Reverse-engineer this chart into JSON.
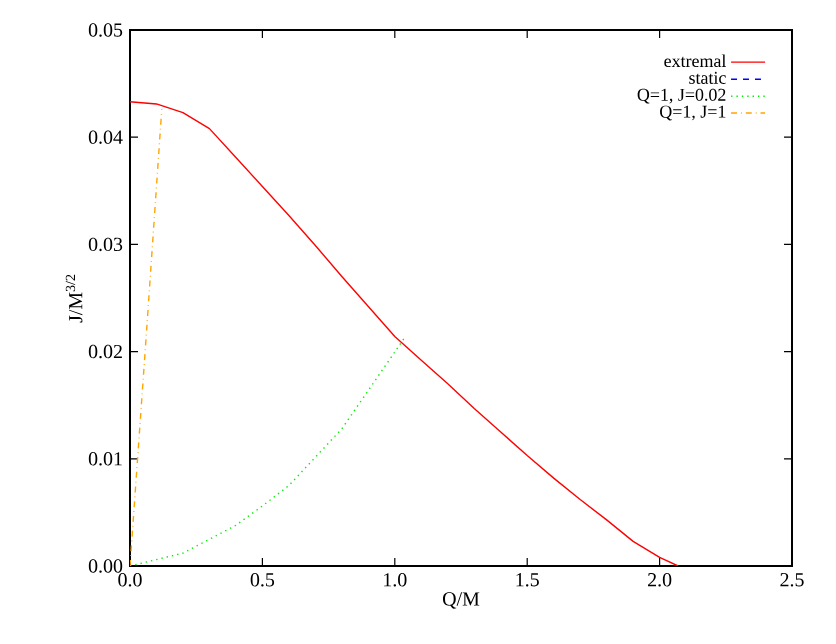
{
  "chart_data": {
    "type": "line",
    "xlabel": "Q/M",
    "ylabel": "J/M$^{3/2}$",
    "xlim": [
      0,
      2.5
    ],
    "ylim": [
      0,
      0.05
    ],
    "xticks": [
      {
        "value": 0,
        "label": "0.0"
      },
      {
        "value": 0.5,
        "label": "0.5"
      },
      {
        "value": 1,
        "label": "1.0"
      },
      {
        "value": 1.5,
        "label": "1.5"
      },
      {
        "value": 2,
        "label": "2.0"
      },
      {
        "value": 2.5,
        "label": "2.5"
      }
    ],
    "yticks": [
      {
        "value": 0,
        "label": "0.00"
      },
      {
        "value": 0.01,
        "label": "0.01"
      },
      {
        "value": 0.02,
        "label": "0.02"
      },
      {
        "value": 0.03,
        "label": "0.03"
      },
      {
        "value": 0.04,
        "label": "0.04"
      },
      {
        "value": 0.05,
        "label": "0.05"
      }
    ],
    "grid": false,
    "legend": "top right",
    "marker": "none",
    "series": [
      {
        "name": "extremal",
        "color": "#ff0000",
        "line_style": "solid",
        "x": [
          0,
          0.1,
          0.2,
          0.3,
          0.4,
          0.5,
          0.6,
          0.7,
          0.8,
          0.9,
          1.0,
          1.1,
          1.2,
          1.3,
          1.4,
          1.5,
          1.6,
          1.7,
          1.8,
          1.9,
          2.0,
          2.07
        ],
        "values": [
          0.0433,
          0.0431,
          0.0423,
          0.0408,
          0.0381,
          0.0354,
          0.0327,
          0.0299,
          0.027,
          0.0242,
          0.0214,
          0.0192,
          0.017,
          0.0147,
          0.0125,
          0.0103,
          0.0082,
          0.0062,
          0.0043,
          0.0023,
          0.0008,
          0
        ]
      },
      {
        "name": "static",
        "color": "#0000ff",
        "line_style": "dashed"
      },
      {
        "name": "Q=1, J=0.02",
        "color": "#00ee00",
        "line_style": "dotted",
        "x": [
          0,
          0.2,
          0.4,
          0.5,
          0.6,
          0.8,
          1.04
        ],
        "values": [
          0,
          0.0012,
          0.0038,
          0.0056,
          0.0075,
          0.0128,
          0.0214
        ]
      },
      {
        "name": "Q=1, J=1",
        "color": "#ffa500",
        "line_style": "dashdot",
        "x": [
          0,
          0.06,
          0.12
        ],
        "values": [
          0,
          0.021,
          0.0426
        ]
      }
    ]
  }
}
